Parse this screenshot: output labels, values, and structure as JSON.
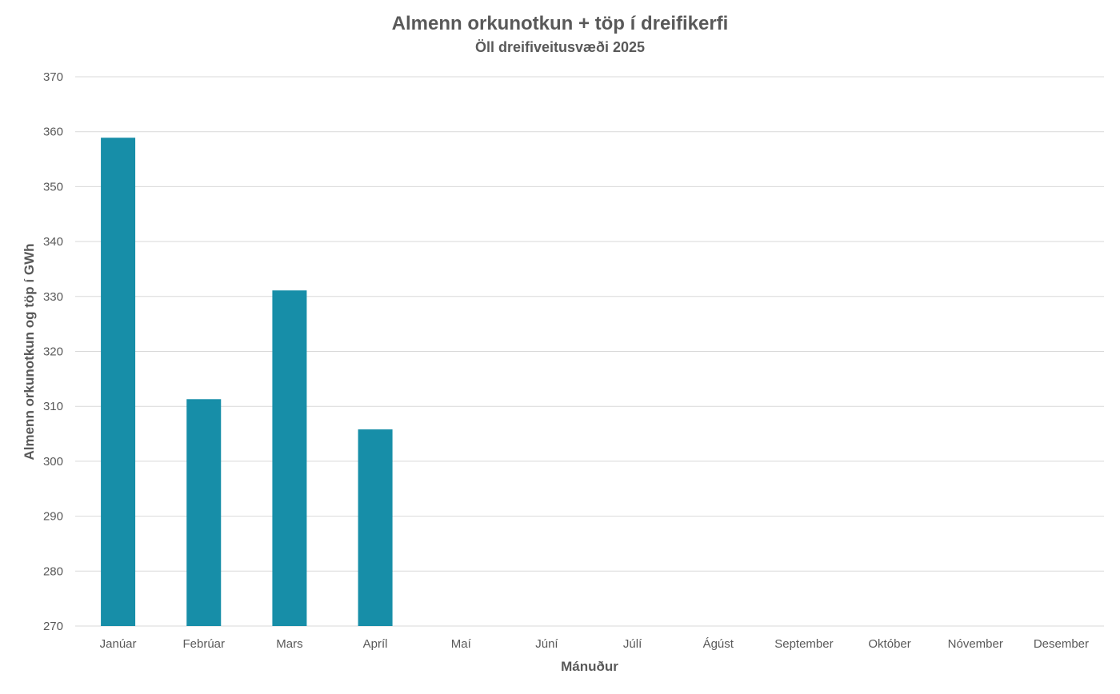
{
  "chart_data": {
    "type": "bar",
    "title": "Almenn orkunotkun + töp í dreifikerfi",
    "subtitle": "Öll dreifiveitusvæði 2025",
    "xlabel": "Mánuður",
    "ylabel": "Almenn orkunotkun og töp í GWh",
    "categories": [
      "Janúar",
      "Febrúar",
      "Mars",
      "Apríl",
      "Maí",
      "Júní",
      "Júlí",
      "Ágúst",
      "September",
      "Október",
      "Nóvember",
      "Desember"
    ],
    "values": [
      358.9,
      311.3,
      331.1,
      305.8,
      null,
      null,
      null,
      null,
      null,
      null,
      null,
      null
    ],
    "ylim": [
      270,
      370
    ],
    "yticks": [
      270,
      280,
      290,
      300,
      310,
      320,
      330,
      340,
      350,
      360,
      370
    ],
    "grid": true,
    "legend": "none",
    "colors": {
      "bar": "#178ea8",
      "grid": "#d9d9d9",
      "text": "#595959"
    }
  }
}
